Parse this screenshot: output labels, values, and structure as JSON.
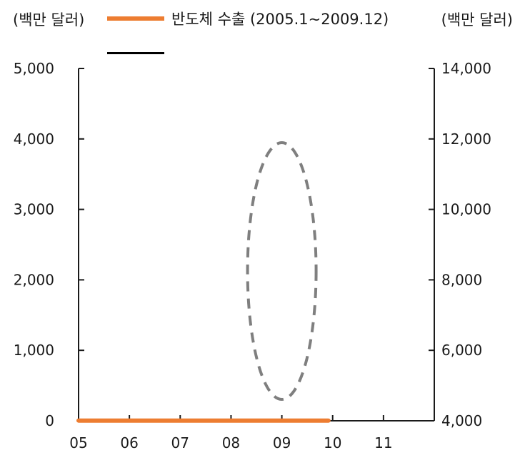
{
  "chart_data": {
    "type": "line",
    "left_axis": {
      "unit": "(백만 달러)",
      "range": [
        0,
        5000
      ],
      "ticks": [
        "0",
        "1,000",
        "2,000",
        "3,000",
        "4,000",
        "5,000"
      ]
    },
    "right_axis": {
      "unit": "(백만 달러)",
      "range": [
        4000,
        14000
      ],
      "ticks": [
        "4,000",
        "6,000",
        "8,000",
        "10,000",
        "12,000",
        "14,000"
      ]
    },
    "x_axis": {
      "ticks": [
        "05",
        "06",
        "07",
        "08",
        "09",
        "10",
        "11"
      ]
    },
    "annotation": "dashed ellipse around the 2009 trough",
    "colors": {
      "orange": "#ED7D31",
      "black": "#000000",
      "ellipse": "#7f7f7f"
    },
    "series": [
      {
        "name": "반도체 수출 (2005.1~2009.12)",
        "axis": "left",
        "values": [
          2.8,
          2.5,
          2.5,
          2.5,
          2.8,
          2.8,
          2.7,
          2.6,
          2.4,
          2.4,
          2.5,
          2.5,
          2.6,
          2.6,
          2.6,
          2.6,
          2.6,
          2.6,
          2.6,
          2.6,
          2.5,
          2.5,
          2.4,
          2.4,
          2.6,
          2.5,
          2.6,
          2.6,
          2.6,
          2.7,
          2.6,
          2.6,
          2.5,
          2.5,
          2.5,
          2.5,
          2.7,
          2.5,
          2.7,
          2.7,
          2.6,
          2.6,
          2.5,
          2.5,
          2.5,
          2.5,
          2.6,
          2.6,
          2.7,
          2.5,
          2.6,
          2.6,
          2.5,
          2.5,
          2.5,
          2.5,
          2.5,
          2.5,
          2.6,
          2.6
        ]
      }
    ]
  }
}
